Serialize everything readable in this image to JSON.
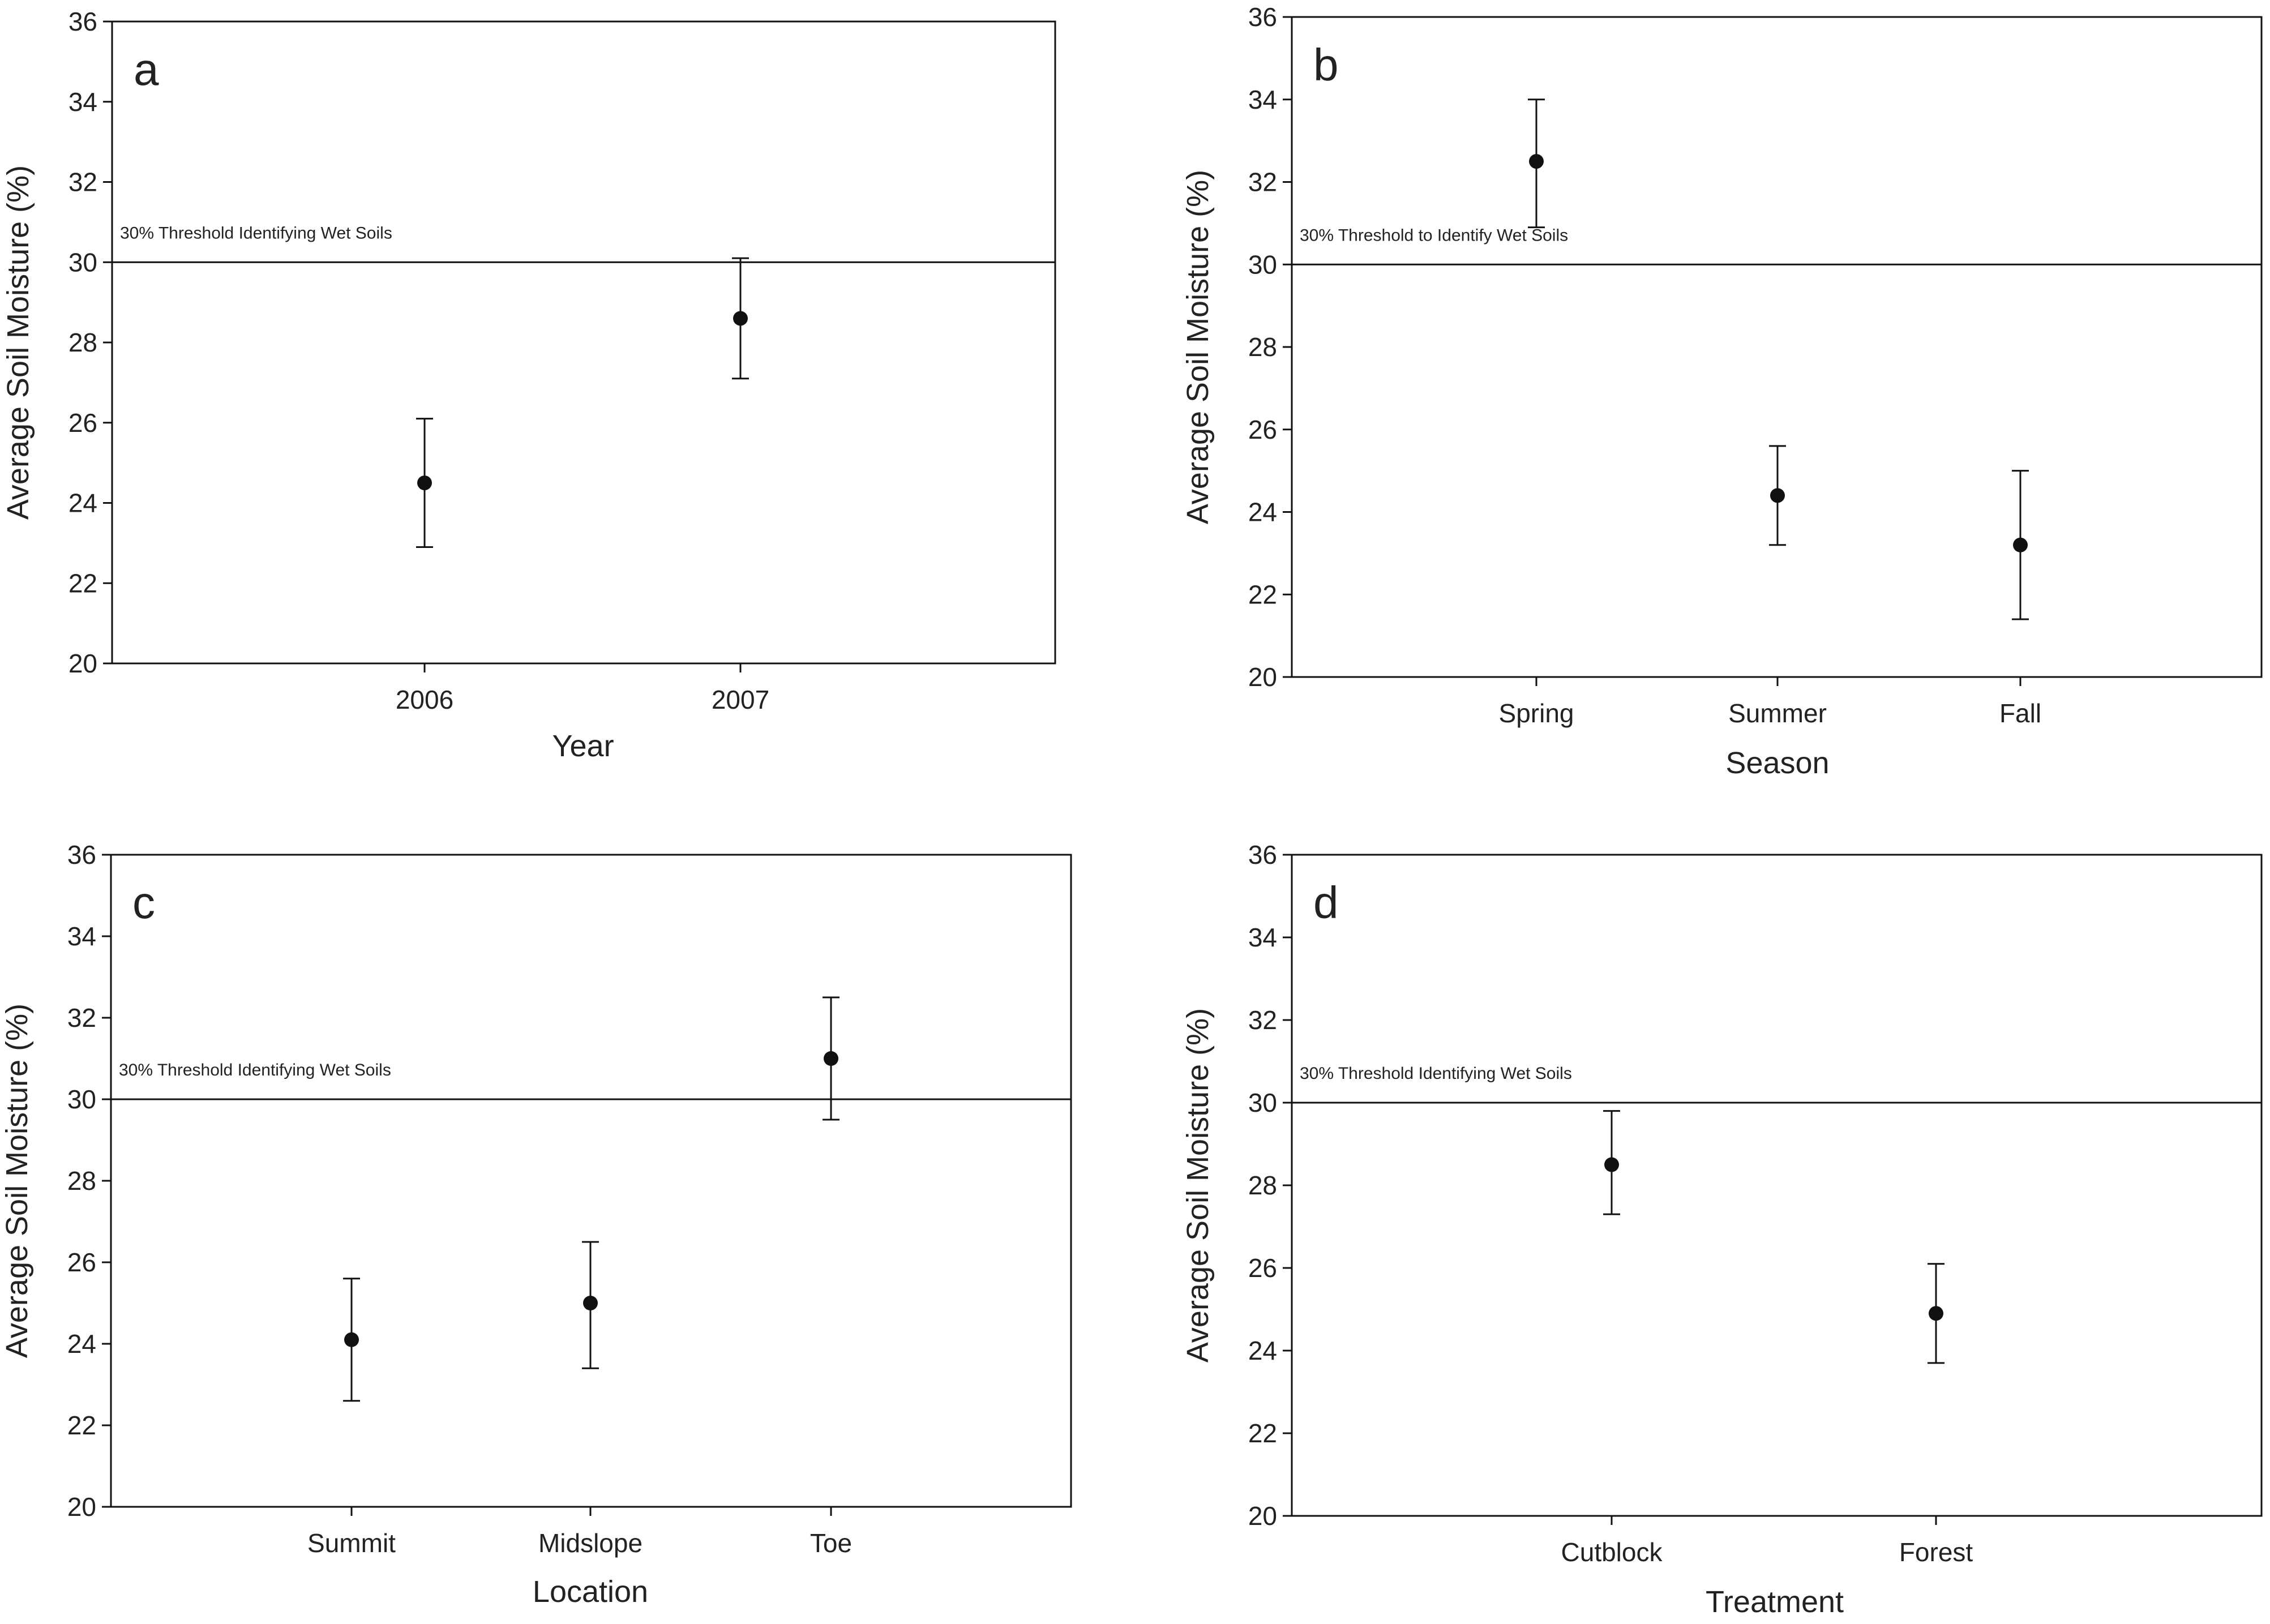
{
  "chart_data": [
    {
      "id": "a",
      "type": "scatter",
      "panel_label": "a",
      "xlabel": "Year",
      "ylabel": "Average Soil Moisture (%)",
      "ylim": [
        20,
        36
      ],
      "yticks": [
        20,
        22,
        24,
        26,
        28,
        30,
        32,
        34,
        36
      ],
      "categories": [
        "2006",
        "2007"
      ],
      "values": [
        24.5,
        28.6
      ],
      "error_low": [
        22.9,
        27.1
      ],
      "error_high": [
        26.1,
        30.1
      ],
      "threshold": {
        "value": 30,
        "label": "30% Threshold Identifying Wet Soils"
      },
      "grid": false
    },
    {
      "id": "b",
      "type": "scatter",
      "panel_label": "b",
      "xlabel": "Season",
      "ylabel": "Average Soil Moisture (%)",
      "ylim": [
        20,
        36
      ],
      "yticks": [
        20,
        22,
        24,
        26,
        28,
        30,
        32,
        34,
        36
      ],
      "categories": [
        "Spring",
        "Summer",
        "Fall"
      ],
      "values": [
        32.5,
        24.4,
        23.2
      ],
      "error_low": [
        30.9,
        23.2,
        21.4
      ],
      "error_high": [
        34.0,
        25.6,
        25.0
      ],
      "threshold": {
        "value": 30,
        "label": "30% Threshold to Identify Wet Soils"
      },
      "grid": false
    },
    {
      "id": "c",
      "type": "scatter",
      "panel_label": "c",
      "xlabel": "Location",
      "ylabel": "Average Soil Moisture (%)",
      "ylim": [
        20,
        36
      ],
      "yticks": [
        20,
        22,
        24,
        26,
        28,
        30,
        32,
        34,
        36
      ],
      "categories": [
        "Summit",
        "Midslope",
        "Toe"
      ],
      "values": [
        24.1,
        25.0,
        31.0
      ],
      "error_low": [
        22.6,
        23.4,
        29.5
      ],
      "error_high": [
        25.6,
        26.5,
        32.5
      ],
      "threshold": {
        "value": 30,
        "label": "30% Threshold Identifying Wet Soils"
      },
      "grid": false
    },
    {
      "id": "d",
      "type": "scatter",
      "panel_label": "d",
      "xlabel": "Treatment",
      "ylabel": "Average Soil Moisture (%)",
      "ylim": [
        20,
        36
      ],
      "yticks": [
        20,
        22,
        24,
        26,
        28,
        30,
        32,
        34,
        36
      ],
      "categories": [
        "Cutblock",
        "Forest"
      ],
      "values": [
        28.5,
        24.9
      ],
      "error_low": [
        27.3,
        23.7
      ],
      "error_high": [
        29.8,
        26.1
      ],
      "threshold": {
        "value": 30,
        "label": "30% Threshold Identifying Wet Soils"
      },
      "grid": false
    }
  ],
  "colors": {
    "ink": "#111111",
    "background": "#ffffff"
  }
}
